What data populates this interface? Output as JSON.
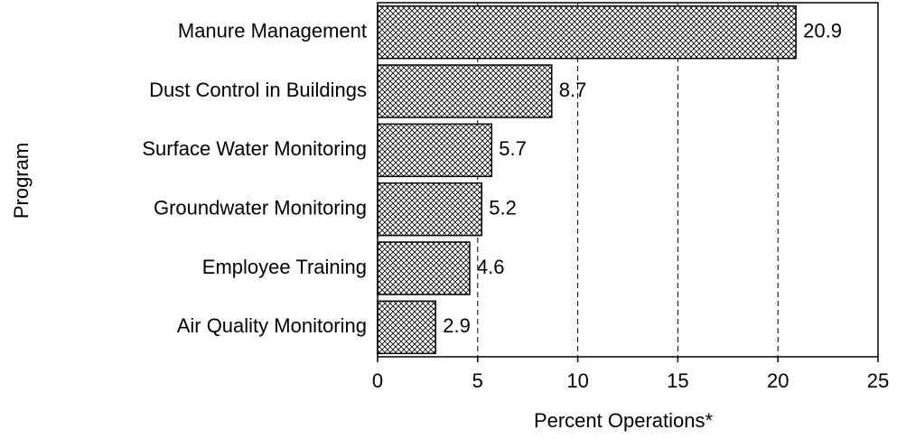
{
  "chart_data": {
    "type": "bar",
    "orientation": "horizontal",
    "categories": [
      "Manure Management",
      "Dust Control in Buildings",
      "Surface Water Monitoring",
      "Groundwater Monitoring",
      "Employee Training",
      "Air Quality Monitoring"
    ],
    "values": [
      20.9,
      8.7,
      5.7,
      5.2,
      4.6,
      2.9
    ],
    "color": "#000000",
    "xlabel": "Percent Operations*",
    "ylabel": "Program",
    "xlim": [
      0,
      25
    ],
    "xticks": [
      0,
      5,
      10,
      15,
      20,
      25
    ],
    "grid": true
  }
}
